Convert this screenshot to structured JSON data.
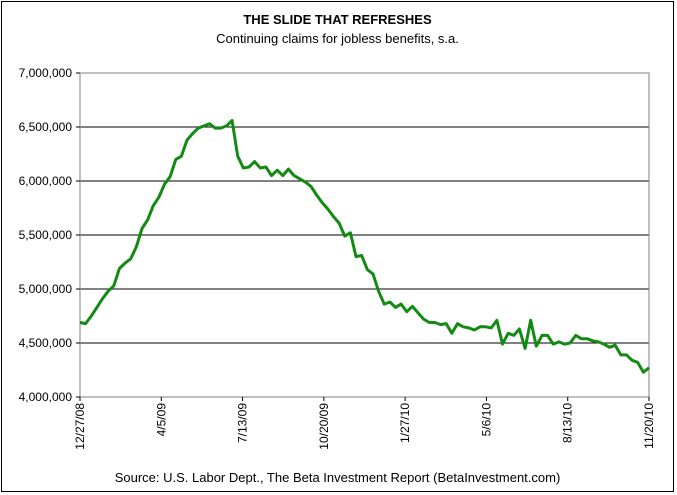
{
  "chart_data": {
    "type": "line",
    "title": "THE SLIDE THAT REFRESHES",
    "subtitle": "Continuing claims for jobless benefits, s.a.",
    "source": "Source: U.S. Labor Dept., The Beta Investment Report (BetaInvestment.com)",
    "xlabel": "",
    "ylabel": "",
    "ylim": [
      4000000,
      7000000
    ],
    "y_ticks": [
      4000000,
      4500000,
      5000000,
      5500000,
      6000000,
      6500000,
      7000000
    ],
    "y_tick_labels": [
      "4,000,000",
      "4,500,000",
      "5,000,000",
      "5,500,000",
      "6,000,000",
      "6,500,000",
      "7,000,000"
    ],
    "x_tick_labels": [
      "12/27/08",
      "4/5/09",
      "7/13/09",
      "10/20/09",
      "1/27/10",
      "5/6/10",
      "8/13/10",
      "11/20/10"
    ],
    "grid": "horizontal",
    "legend": "none",
    "line_color": "#138a13",
    "x_start": "12/27/08",
    "x_interval": "weekly",
    "series": [
      {
        "values": [
          4690000,
          4680000,
          4750000,
          4830000,
          4910000,
          4980000,
          5030000,
          5190000,
          5240000,
          5280000,
          5390000,
          5560000,
          5640000,
          5770000,
          5850000,
          5970000,
          6040000,
          6200000,
          6230000,
          6380000,
          6440000,
          6490000,
          6510000,
          6530000,
          6490000,
          6490000,
          6510000,
          6560000,
          6230000,
          6120000,
          6130000,
          6180000,
          6120000,
          6130000,
          6050000,
          6100000,
          6050000,
          6110000,
          6050000,
          6020000,
          5990000,
          5950000,
          5870000,
          5800000,
          5740000,
          5670000,
          5610000,
          5490000,
          5520000,
          5300000,
          5310000,
          5180000,
          5140000,
          4980000,
          4860000,
          4880000,
          4830000,
          4860000,
          4790000,
          4840000,
          4780000,
          4720000,
          4690000,
          4690000,
          4670000,
          4680000,
          4590000,
          4680000,
          4650000,
          4640000,
          4620000,
          4650000,
          4650000,
          4640000,
          4710000,
          4490000,
          4590000,
          4570000,
          4630000,
          4450000,
          4710000,
          4470000,
          4570000,
          4570000,
          4490000,
          4510000,
          4490000,
          4500000,
          4570000,
          4540000,
          4540000,
          4520000,
          4510000,
          4490000,
          4460000,
          4480000,
          4390000,
          4390000,
          4340000,
          4320000,
          4230000,
          4270000
        ]
      }
    ]
  }
}
